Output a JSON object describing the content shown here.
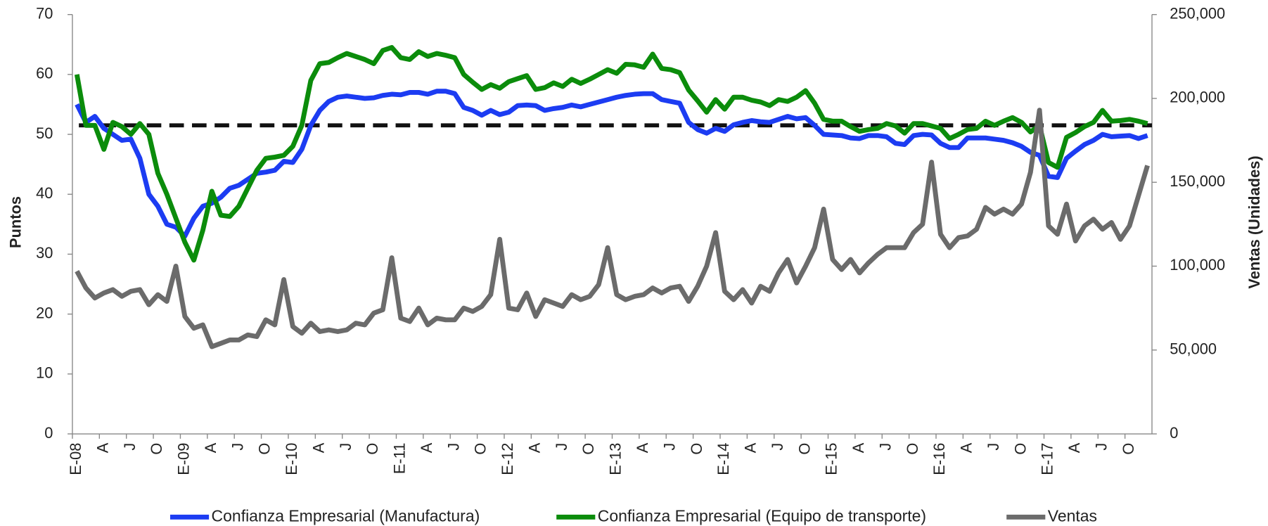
{
  "chart_data": {
    "type": "line",
    "y_label": "Puntos",
    "y2_label": "Ventas (Unidades)",
    "categories": [
      "E-08",
      null,
      null,
      "A",
      null,
      null,
      "J",
      null,
      null,
      "O",
      null,
      null,
      "E-09",
      null,
      null,
      "A",
      null,
      null,
      "J",
      null,
      null,
      "O",
      null,
      null,
      "E-10",
      null,
      null,
      "A",
      null,
      null,
      "J",
      null,
      null,
      "O",
      null,
      null,
      "E-11",
      null,
      null,
      "A",
      null,
      null,
      "J",
      null,
      null,
      "O",
      null,
      null,
      "E-12",
      null,
      null,
      "A",
      null,
      null,
      "J",
      null,
      null,
      "O",
      null,
      null,
      "E-13",
      null,
      null,
      "A",
      null,
      null,
      "J",
      null,
      null,
      "O",
      null,
      null,
      "E-14",
      null,
      null,
      "A",
      null,
      null,
      "J",
      null,
      null,
      "O",
      null,
      null,
      "E-15",
      null,
      null,
      "A",
      null,
      null,
      "J",
      null,
      null,
      "O",
      null,
      null,
      "E-16",
      null,
      null,
      "A",
      null,
      null,
      "J",
      null,
      null,
      "O",
      null,
      null,
      "E-17",
      null,
      null,
      "A",
      null,
      null,
      "J",
      null,
      null,
      "O",
      null,
      null
    ],
    "series": [
      {
        "name": "Confianza Empresarial (Manufactura)",
        "color": "#1c3cf2",
        "values": [
          55,
          52,
          53,
          51,
          50,
          49,
          49.2,
          46,
          40,
          38,
          35,
          34.5,
          33,
          36,
          38,
          38.5,
          39.5,
          41,
          41.5,
          42.5,
          43.5,
          43.7,
          44,
          45.5,
          45.3,
          47.5,
          51.5,
          54,
          55.5,
          56.2,
          56.4,
          56.2,
          56,
          56.1,
          56.5,
          56.7,
          56.6,
          57,
          57,
          56.7,
          57.2,
          57.2,
          56.8,
          54.5,
          54,
          53.2,
          54,
          53.3,
          53.7,
          54.8,
          54.9,
          54.8,
          54,
          54.3,
          54.5,
          54.9,
          54.6,
          55,
          55.4,
          55.8,
          56.2,
          56.5,
          56.7,
          56.8,
          56.8,
          55.8,
          55.5,
          55.2,
          52,
          50.8,
          50.2,
          51,
          50.5,
          51.6,
          52,
          52.3,
          52.1,
          52,
          52.5,
          53,
          52.6,
          52.8,
          51.5,
          50,
          49.9,
          49.8,
          49.4,
          49.3,
          49.8,
          49.8,
          49.6,
          48.5,
          48.3,
          49.8,
          50,
          49.9,
          48.5,
          47.8,
          47.8,
          49.4,
          49.4,
          49.4,
          49.2,
          49,
          48.6,
          48,
          47,
          46.5,
          43,
          42.8,
          46,
          47.2,
          48.3,
          49,
          50,
          49.6,
          49.7,
          49.8,
          49.3,
          49.8
        ]
      },
      {
        "name": "Confianza Empresarial (Equipo de transporte)",
        "color": "#0b8c0b",
        "values": [
          60,
          51.5,
          51.5,
          47.5,
          52,
          51.3,
          50,
          51.8,
          50,
          43.5,
          40,
          36,
          32,
          29,
          34,
          40.5,
          36.5,
          36.3,
          38,
          41,
          44,
          46,
          46.2,
          46.5,
          48,
          51.5,
          59,
          61.8,
          62,
          62.8,
          63.5,
          63,
          62.5,
          61.8,
          64,
          64.5,
          62.8,
          62.5,
          63.8,
          63,
          63.5,
          63.2,
          62.8,
          60,
          58.7,
          57.5,
          58.3,
          57.7,
          58.8,
          59.3,
          59.8,
          57.5,
          57.8,
          58.6,
          58,
          59.2,
          58.5,
          59.2,
          60,
          60.8,
          60.2,
          61.7,
          61.6,
          61.2,
          63.4,
          61,
          60.8,
          60.3,
          57.4,
          55.6,
          53.7,
          55.8,
          54.2,
          56.2,
          56.2,
          55.7,
          55.4,
          54.8,
          55.8,
          55.5,
          56.2,
          57.3,
          55.2,
          52.5,
          52.2,
          52.2,
          51.3,
          50.5,
          50.8,
          51,
          51.8,
          51.4,
          50.2,
          51.8,
          51.8,
          51.4,
          51,
          49.3,
          50,
          50.8,
          51,
          52.2,
          51.5,
          52.2,
          52.8,
          52,
          50.4,
          51.5,
          45.3,
          44.5,
          49.5,
          50.3,
          51.3,
          52,
          54,
          52.2,
          52.3,
          52.5,
          52.2,
          51.8
        ]
      },
      {
        "name": "Ventas",
        "color": "#6b6b6b",
        "axis": "y2",
        "values": [
          97000,
          87000,
          81000,
          84000,
          86000,
          82000,
          85000,
          86000,
          77000,
          83000,
          79000,
          100000,
          70000,
          63000,
          65000,
          52000,
          54000,
          56000,
          56000,
          59000,
          58000,
          68000,
          65000,
          92000,
          64000,
          60000,
          66000,
          61000,
          62000,
          61000,
          62000,
          66000,
          65000,
          72000,
          74000,
          105000,
          69000,
          67000,
          75000,
          65000,
          69000,
          68000,
          68000,
          75000,
          73000,
          76000,
          83000,
          116000,
          75000,
          74000,
          84000,
          70000,
          80000,
          78000,
          76000,
          83000,
          80000,
          82000,
          89000,
          111000,
          83000,
          80000,
          82000,
          83000,
          87000,
          84000,
          87000,
          88000,
          79000,
          88000,
          100000,
          120000,
          85000,
          80000,
          86000,
          78000,
          88000,
          85000,
          96000,
          104000,
          90000,
          100000,
          111000,
          134000,
          104000,
          98000,
          104000,
          96000,
          102000,
          107000,
          111000,
          111000,
          111000,
          120000,
          125000,
          162000,
          119000,
          111000,
          117000,
          118000,
          122000,
          135000,
          131000,
          134000,
          131000,
          137000,
          156000,
          193000,
          124000,
          119000,
          137000,
          115000,
          124000,
          128000,
          122000,
          126000,
          116000,
          124000,
          142000,
          160000
        ]
      }
    ],
    "reference_line": 51.5,
    "ylim": [
      0,
      70
    ],
    "yticks": [
      0,
      10,
      20,
      30,
      40,
      50,
      60,
      70
    ],
    "y2lim": [
      0,
      250000
    ],
    "y2ticks": [
      0,
      {
        "value": 50000,
        "label": "50,000"
      },
      {
        "value": 100000,
        "label": "100,000"
      },
      {
        "value": 150000,
        "label": "150,000"
      },
      {
        "value": 200000,
        "label": "200,000"
      },
      {
        "value": 250000,
        "label": "250,000"
      }
    ],
    "legend": "bottom"
  }
}
